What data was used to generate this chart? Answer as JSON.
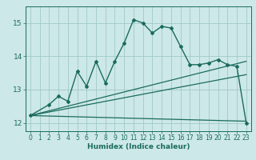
{
  "title": "",
  "xlabel": "Humidex (Indice chaleur)",
  "bg_color": "#cde8e8",
  "grid_color": "#a0c8c8",
  "line_color": "#1a6b5e",
  "xlim": [
    -0.5,
    23.5
  ],
  "ylim": [
    11.75,
    15.5
  ],
  "yticks": [
    12,
    13,
    14,
    15
  ],
  "xticks": [
    0,
    1,
    2,
    3,
    4,
    5,
    6,
    7,
    8,
    9,
    10,
    11,
    12,
    13,
    14,
    15,
    16,
    17,
    18,
    19,
    20,
    21,
    22,
    23
  ],
  "series1_x": [
    0,
    2,
    3,
    4,
    5,
    6,
    7,
    8,
    9,
    10,
    11,
    12,
    13,
    14,
    15,
    16,
    17,
    18,
    19,
    20,
    21,
    22,
    23
  ],
  "series1_y": [
    12.22,
    12.55,
    12.8,
    12.65,
    13.55,
    13.1,
    13.85,
    13.2,
    13.85,
    14.4,
    15.1,
    15.0,
    14.7,
    14.9,
    14.85,
    14.3,
    13.75,
    13.75,
    13.8,
    13.9,
    13.75,
    13.7,
    12.0
  ],
  "series2_x": [
    0,
    23
  ],
  "series2_y": [
    12.22,
    13.85
  ],
  "series3_x": [
    0,
    23
  ],
  "series3_y": [
    12.22,
    12.05
  ],
  "series4_x": [
    0,
    23
  ],
  "series4_y": [
    12.22,
    13.45
  ]
}
